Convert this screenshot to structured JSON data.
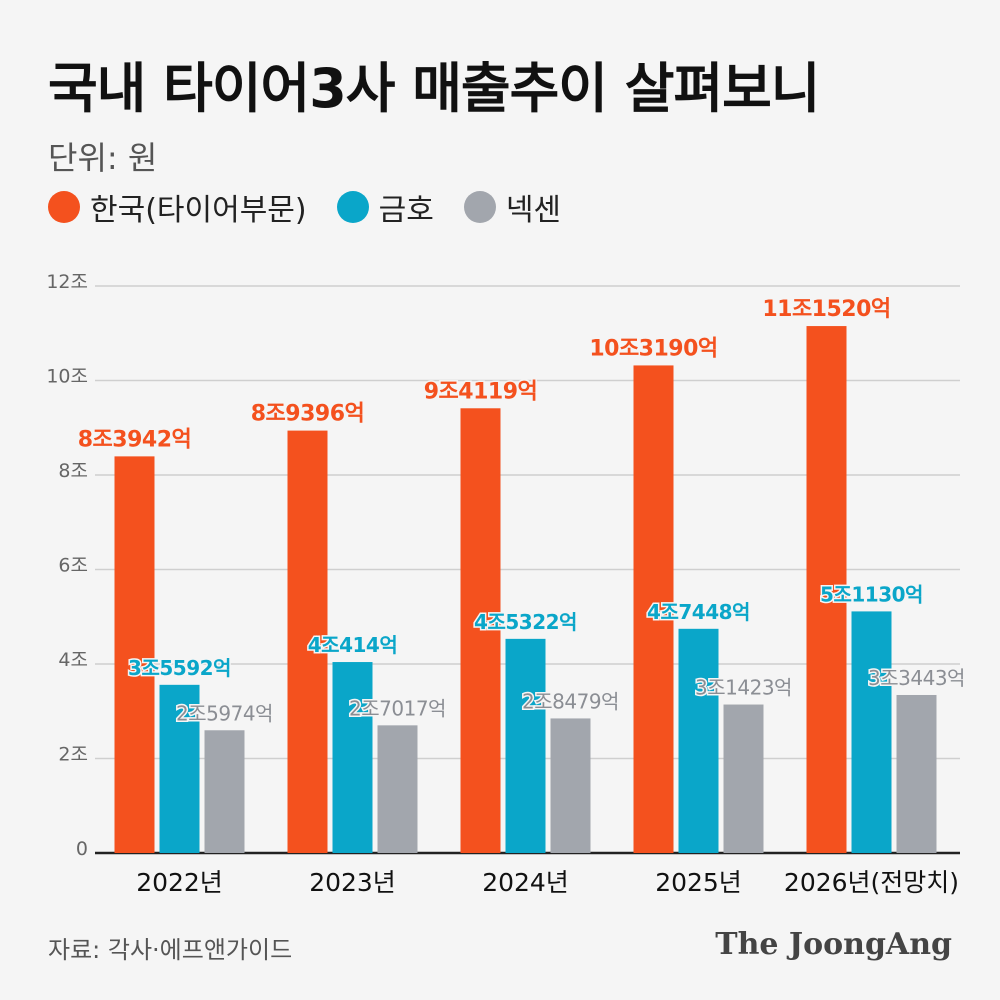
{
  "header": {
    "title": "국내 타이어3사 매출추이 살펴보니",
    "unit": "단위: 원"
  },
  "footer": {
    "source": "자료: 각사·에프앤가이드",
    "brand": "The JoongAng"
  },
  "colors": {
    "hankook": "#f4511e",
    "kumho": "#0aa6c9",
    "nexen": "#a2a6ad",
    "grid": "#cfcfcf",
    "axis": "#222222",
    "tick": "#666666"
  },
  "chart_data": {
    "type": "bar",
    "title": "국내 타이어3사 매출추이 살펴보니",
    "ylabel": "단위: 원",
    "ylim": [
      0,
      12
    ],
    "yticks": [
      0,
      2,
      4,
      6,
      8,
      10,
      12
    ],
    "ytick_labels": [
      "0",
      "2조",
      "4조",
      "6조",
      "8조",
      "10조",
      "12조"
    ],
    "grid": true,
    "legend_position": "top-left",
    "categories": [
      "2022년",
      "2023년",
      "2024년",
      "2025년",
      "2026년(전망치)"
    ],
    "series": [
      {
        "name": "한국(타이어부문)",
        "values": [
          8.3942,
          8.9396,
          9.4119,
          10.319,
          11.152
        ],
        "labels": [
          "8조3942억",
          "8조9396억",
          "9조4119억",
          "10조3190억",
          "11조1520억"
        ]
      },
      {
        "name": "금호",
        "values": [
          3.5592,
          4.0414,
          4.5322,
          4.7448,
          5.113
        ],
        "labels": [
          "3조5592억",
          "4조414억",
          "4조5322억",
          "4조7448억",
          "5조1130억"
        ]
      },
      {
        "name": "넥센",
        "values": [
          2.5974,
          2.7017,
          2.8479,
          3.1423,
          3.3443
        ],
        "labels": [
          "2조5974억",
          "2조7017억",
          "2조8479억",
          "3조1423억",
          "3조3443억"
        ]
      }
    ]
  }
}
